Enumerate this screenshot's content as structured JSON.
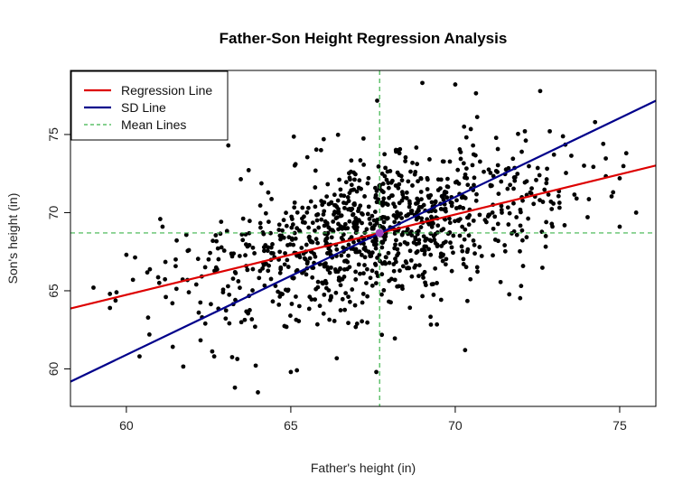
{
  "chart_data": {
    "type": "scatter",
    "title": "Father-Son Height Regression Analysis",
    "xlabel": "Father's height (in)",
    "ylabel": "Son's height (in)",
    "xlim": [
      58.3,
      76.1
    ],
    "ylim": [
      57.6,
      79.1
    ],
    "xticks": [
      60,
      65,
      70,
      75
    ],
    "yticks": [
      60,
      65,
      70,
      75
    ],
    "xtick_labels": [
      "60",
      "65",
      "70",
      "75"
    ],
    "ytick_labels": [
      "60",
      "65",
      "70",
      "75"
    ],
    "means": {
      "father": 67.7,
      "son": 68.7
    },
    "regression_line": {
      "intercept": 33.9,
      "slope": 0.514,
      "color": "#dd0000"
    },
    "sd_line": {
      "intercept": 0.3,
      "slope": 1.01,
      "color": "#00008b"
    },
    "mean_line_color": "#3cb44b",
    "mean_point_color": "#a040c0",
    "point_color": "#000000",
    "legend": {
      "position": "top-left",
      "entries": [
        {
          "label": "Regression Line",
          "style": "solid",
          "color": "#dd0000"
        },
        {
          "label": "SD Line",
          "style": "solid",
          "color": "#00008b"
        },
        {
          "label": "Mean Lines",
          "style": "dashed",
          "color": "#3cb44b"
        }
      ]
    },
    "notable_points": [
      {
        "x": 59.0,
        "y": 65.2
      },
      {
        "x": 59.5,
        "y": 64.8
      },
      {
        "x": 59.5,
        "y": 63.9
      },
      {
        "x": 59.7,
        "y": 64.9
      },
      {
        "x": 60.0,
        "y": 67.3
      },
      {
        "x": 60.2,
        "y": 65.7
      },
      {
        "x": 60.4,
        "y": 60.8
      },
      {
        "x": 60.7,
        "y": 62.2
      },
      {
        "x": 61.0,
        "y": 65.5
      },
      {
        "x": 61.1,
        "y": 69.1
      },
      {
        "x": 61.2,
        "y": 64.6
      },
      {
        "x": 61.4,
        "y": 64.2
      },
      {
        "x": 61.5,
        "y": 67.0
      },
      {
        "x": 61.9,
        "y": 67.6
      },
      {
        "x": 62.2,
        "y": 63.6
      },
      {
        "x": 62.3,
        "y": 63.3
      },
      {
        "x": 62.4,
        "y": 62.9
      },
      {
        "x": 62.7,
        "y": 66.2
      },
      {
        "x": 63.1,
        "y": 74.3
      },
      {
        "x": 63.3,
        "y": 58.8
      },
      {
        "x": 64.0,
        "y": 58.5
      },
      {
        "x": 65.0,
        "y": 59.8
      },
      {
        "x": 66.0,
        "y": 74.7
      },
      {
        "x": 67.6,
        "y": 59.8
      },
      {
        "x": 69.0,
        "y": 78.3
      },
      {
        "x": 70.0,
        "y": 78.2
      },
      {
        "x": 70.3,
        "y": 61.2
      },
      {
        "x": 74.5,
        "y": 74.4
      },
      {
        "x": 74.8,
        "y": 71.3
      },
      {
        "x": 75.0,
        "y": 69.1
      },
      {
        "x": 75.2,
        "y": 73.8
      },
      {
        "x": 75.5,
        "y": 70.0
      }
    ],
    "n_points": 1078,
    "seed": 20240519
  }
}
